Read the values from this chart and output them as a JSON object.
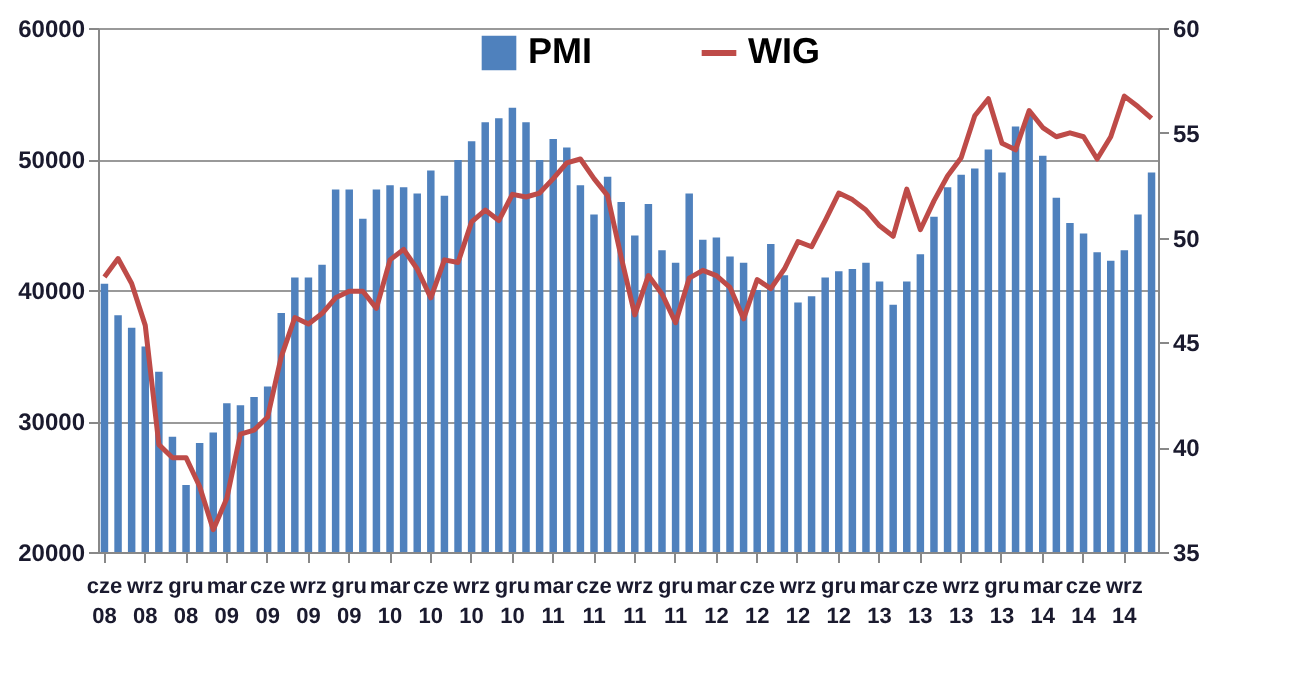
{
  "chart_data": {
    "type": "bar",
    "categories": [
      "cze 08",
      null,
      null,
      "wrz 08",
      null,
      null,
      "gru 08",
      null,
      null,
      "mar 09",
      null,
      null,
      "cze 09",
      null,
      null,
      "wrz 09",
      null,
      null,
      "gru 09",
      null,
      null,
      "mar 10",
      null,
      null,
      "cze 10",
      null,
      null,
      "wrz 10",
      null,
      null,
      "gru 10",
      null,
      null,
      "mar 11",
      null,
      null,
      "cze 11",
      null,
      null,
      "wrz 11",
      null,
      null,
      "gru 11",
      null,
      null,
      "mar 12",
      null,
      null,
      "cze 12",
      null,
      null,
      "wrz 12",
      null,
      null,
      "gru 12",
      null,
      null,
      "mar 13",
      null,
      null,
      "cze 13",
      null,
      null,
      "wrz 13",
      null,
      null,
      "gru 13",
      null,
      null,
      "mar 14",
      null,
      null,
      "cze 14",
      null,
      null,
      "wrz 14",
      null,
      null
    ],
    "series": [
      {
        "name": "PMI",
        "axis": "y2",
        "color": "#4f81bd",
        "values": [
          47.8,
          46.3,
          45.7,
          44.8,
          43.6,
          40.5,
          38.2,
          40.2,
          40.7,
          42.1,
          42.0,
          42.4,
          42.9,
          46.4,
          48.1,
          48.1,
          48.7,
          52.3,
          52.3,
          50.9,
          52.3,
          52.5,
          52.4,
          52.1,
          53.2,
          52.0,
          53.7,
          54.6,
          55.5,
          55.7,
          56.2,
          55.5,
          53.7,
          54.7,
          54.3,
          52.5,
          51.1,
          52.9,
          51.7,
          50.1,
          51.6,
          49.4,
          48.8,
          52.1,
          49.9,
          50.0,
          49.1,
          48.8,
          47.5,
          49.7,
          48.2,
          46.9,
          47.2,
          48.1,
          48.4,
          48.5,
          48.8,
          47.9,
          46.8,
          47.9,
          49.2,
          51.0,
          52.4,
          53.0,
          53.3,
          54.2,
          53.1,
          55.3,
          55.8,
          53.9,
          51.9,
          50.7,
          50.2,
          49.3,
          48.9,
          49.4,
          51.1,
          53.1
        ]
      },
      {
        "name": "WIG",
        "type": "line",
        "axis": "y",
        "color": "#be4b48",
        "values": [
          41000,
          42400,
          40500,
          37300,
          28200,
          27200,
          27200,
          25000,
          21700,
          24100,
          29000,
          29300,
          30300,
          34900,
          37900,
          37400,
          38200,
          39400,
          39900,
          39900,
          38600,
          42300,
          43100,
          41600,
          39400,
          42300,
          42100,
          45200,
          46100,
          45300,
          47300,
          47100,
          47400,
          48500,
          49700,
          50000,
          48500,
          47200,
          42500,
          38100,
          41100,
          39700,
          37500,
          40900,
          41500,
          41100,
          40200,
          37800,
          40800,
          40100,
          41600,
          43700,
          43300,
          45300,
          47400,
          46900,
          46100,
          44900,
          44100,
          47700,
          44600,
          46800,
          48700,
          50100,
          53300,
          54600,
          51200,
          50700,
          53700,
          52400,
          51700,
          52000,
          51700,
          50000,
          51700,
          54800,
          54000,
          53100
        ]
      }
    ],
    "ylim": [
      20000,
      60000
    ],
    "yticks": [
      20000,
      30000,
      40000,
      50000,
      60000
    ],
    "y2lim": [
      35,
      60
    ],
    "y2ticks": [
      35,
      40,
      45,
      50,
      55,
      60
    ],
    "grid": "y",
    "legend": "top"
  }
}
